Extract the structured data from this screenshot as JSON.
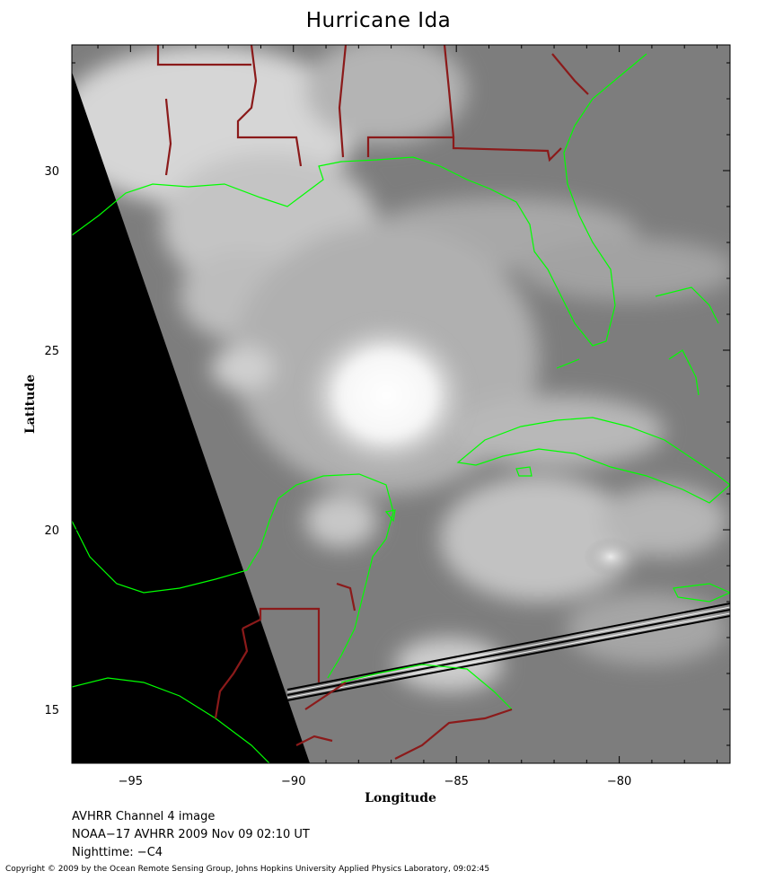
{
  "title": "Hurricane Ida",
  "map": {
    "xlabel": "Longitude",
    "ylabel": "Latitude",
    "lon_range": [
      -96.8,
      -76.6
    ],
    "lat_range": [
      13.5,
      33.5
    ],
    "x_ticks": [
      -95,
      -90,
      -85,
      -80
    ],
    "y_ticks": [
      15,
      20,
      25,
      30
    ],
    "x_tick_labels": [
      "−95",
      "−90",
      "−85",
      "−80"
    ],
    "y_tick_labels": [
      "15",
      "20",
      "25",
      "30"
    ],
    "coastline_color": "#00ff00",
    "border_color": "#8b1a1a",
    "no_data_color": "#000000"
  },
  "caption": {
    "line1": "AVHRR Channel 4 image",
    "line2": "NOAA−17 AVHRR 2009 Nov 09 02:10 UT",
    "line3": "Nighttime: −C4"
  },
  "copyright": "Copyright © 2009 by the Ocean Remote Sensing Group, Johns Hopkins University Applied Physics Laboratory, 09:02:45"
}
